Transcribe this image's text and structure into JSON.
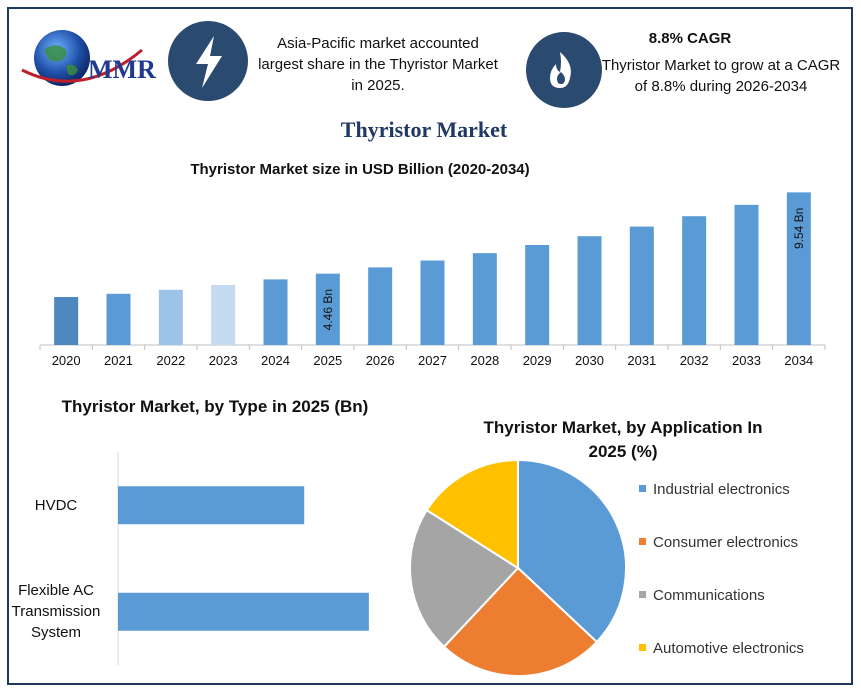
{
  "header": {
    "logo": "MMR",
    "fact1": "Asia-Pacific market accounted largest share in the Thyristor Market in 2025.",
    "fact2_title": "8.8% CAGR",
    "fact2": "Thyristor Market to grow at a CAGR of 8.8% during 2026-2034"
  },
  "title": "Thyristor Market",
  "chart_data": [
    {
      "type": "bar",
      "title": "Thyristor Market size in USD Billion (2020-2034)",
      "categories": [
        "2020",
        "2021",
        "2022",
        "2023",
        "2024",
        "2025",
        "2026",
        "2027",
        "2028",
        "2029",
        "2030",
        "2031",
        "2032",
        "2033",
        "2034"
      ],
      "values": [
        3.0,
        3.2,
        3.45,
        3.75,
        4.1,
        4.46,
        4.85,
        5.28,
        5.74,
        6.25,
        6.8,
        7.4,
        8.05,
        8.76,
        9.54
      ],
      "value_labels": [
        null,
        null,
        null,
        null,
        null,
        "4.46 Bn",
        null,
        null,
        null,
        null,
        null,
        null,
        null,
        null,
        "9.54 Bn"
      ],
      "colors": [
        "#4e86bf",
        "#5b9bd5",
        "#9dc3e6",
        "#c5d9f0",
        "#5b9bd5",
        "#5b9bd5",
        "#5b9bd5",
        "#5b9bd5",
        "#5b9bd5",
        "#5b9bd5",
        "#5b9bd5",
        "#5b9bd5",
        "#5b9bd5",
        "#5b9bd5",
        "#5b9bd5"
      ],
      "ylim": [
        0,
        10
      ]
    },
    {
      "type": "bar",
      "horizontal": true,
      "title": "Thyristor Market, by Type in 2025 (Bn)",
      "categories": [
        "HVDC",
        "Flexible AC Transmission System"
      ],
      "values": [
        1.9,
        2.56
      ],
      "color": "#5b9bd5",
      "xlim": [
        0,
        3
      ]
    },
    {
      "type": "pie",
      "title": "Thyristor Market, by Application In 2025 (%)",
      "categories": [
        "Industrial electronics",
        "Consumer electronics",
        "Communications",
        "Automotive electronics"
      ],
      "values": [
        37,
        25,
        22,
        16
      ],
      "colors": [
        "#5b9bd5",
        "#ed7d31",
        "#a5a5a5",
        "#ffc000"
      ],
      "legend": "right"
    }
  ]
}
